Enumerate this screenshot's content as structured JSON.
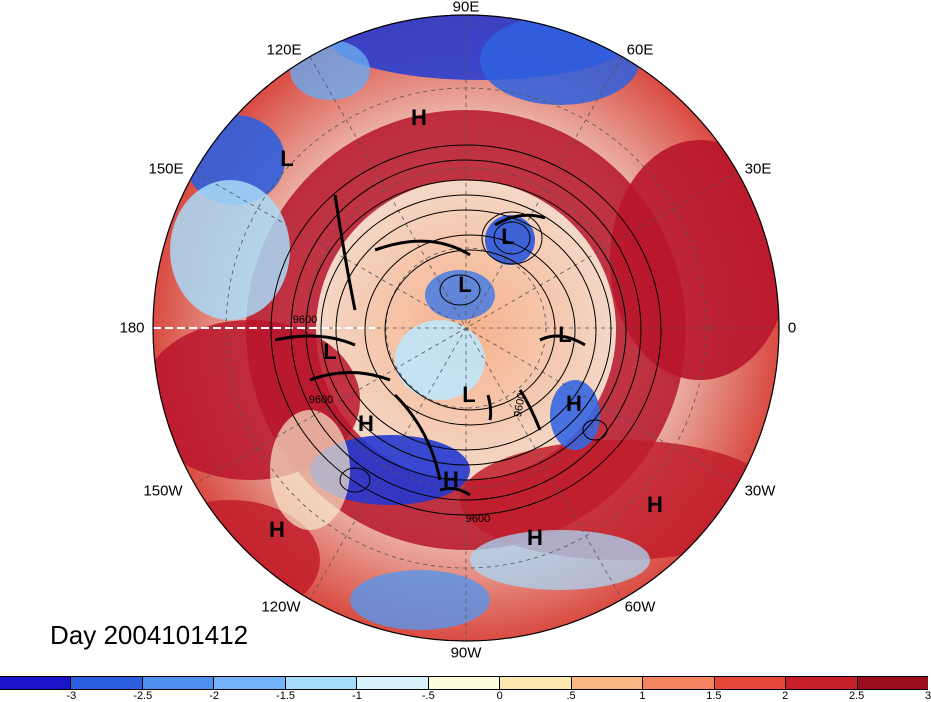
{
  "title": "Day 2004101412",
  "longitude_labels": [
    "90E",
    "60E",
    "30E",
    "0",
    "30W",
    "60W",
    "90W",
    "120W",
    "150W",
    "180",
    "150E",
    "120E"
  ],
  "pressure_centers": [
    "H",
    "L",
    "L",
    "L",
    "H",
    "L",
    "L",
    "H",
    "H",
    "L",
    "H",
    "H",
    "H"
  ],
  "contour_labels": [
    "9600",
    "9600",
    "9600",
    "9600"
  ],
  "colorbar": {
    "labels": [
      "-3",
      "-2.5",
      "-2",
      "-1.5",
      "-1",
      "-.5",
      "0",
      ".5",
      "1",
      "1.5",
      "2",
      "2.5",
      "3"
    ],
    "colors": [
      "#1a14c8",
      "#2e5ee0",
      "#4f8ff0",
      "#73b3f7",
      "#a5dcfb",
      "#d9f3fd",
      "#fefde0",
      "#fde9b0",
      "#f8b985",
      "#f3845f",
      "#e5483a",
      "#c8202a",
      "#9b0d1e"
    ]
  }
}
